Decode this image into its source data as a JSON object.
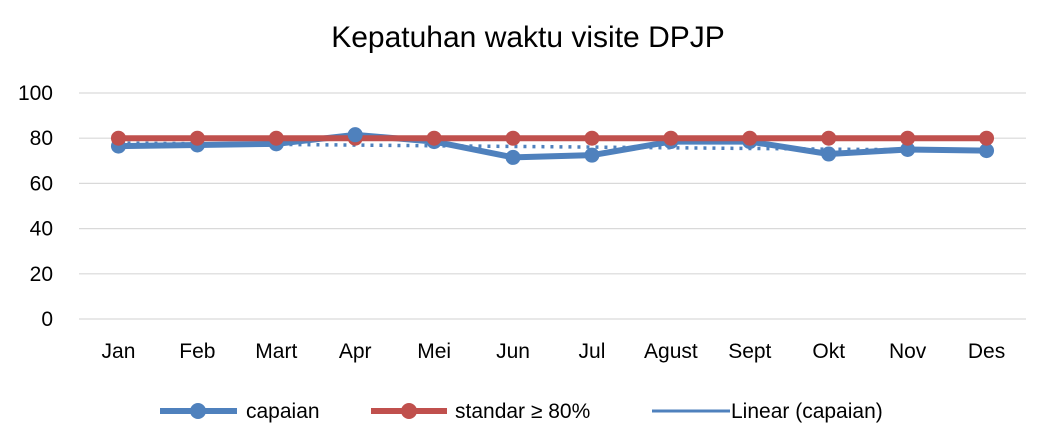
{
  "chart_data": {
    "type": "line",
    "title": "Kepatuhan waktu visite DPJP",
    "xlabel": "",
    "ylabel": "",
    "categories": [
      "Jan",
      "Feb",
      "Mart",
      "Apr",
      "Mei",
      "Jun",
      "Jul",
      "Agust",
      "Sept",
      "Okt",
      "Nov",
      "Des"
    ],
    "ylim": [
      0,
      100
    ],
    "yticks": [
      "0",
      "20",
      "40",
      "60",
      "80",
      "100"
    ],
    "grid": true,
    "legend_position": "bottom",
    "series": [
      {
        "name": "capaian",
        "color": "#4f81bd",
        "marker": "circle",
        "values": [
          76.5,
          77,
          77.5,
          81.5,
          78.5,
          71.5,
          72.5,
          78.5,
          78.5,
          73,
          75,
          74.5
        ]
      },
      {
        "name": "standar ≥ 80%",
        "color": "#c0504d",
        "marker": "circle",
        "values": [
          80,
          80,
          80,
          80,
          80,
          80,
          80,
          80,
          80,
          80,
          80,
          80
        ]
      }
    ],
    "trendline": {
      "name": "Linear (capaian)",
      "color": "#4f81bd",
      "style": "dotted",
      "of_series": "capaian",
      "kind": "linear"
    }
  }
}
